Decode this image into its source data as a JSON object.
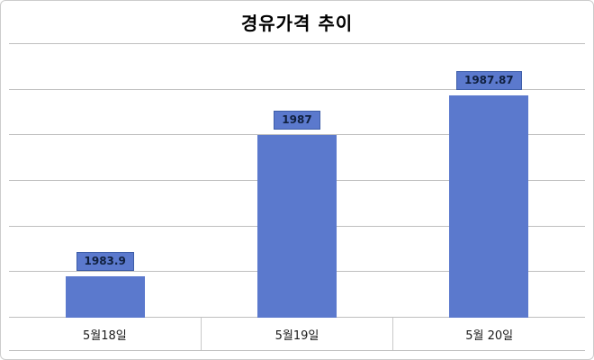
{
  "chart_data": {
    "type": "bar",
    "title": "경유가격 추이",
    "categories": [
      "5월18일",
      "5월19일",
      "5월 20일"
    ],
    "values": [
      1983.9,
      1987,
      1987.87
    ],
    "value_labels": [
      "1983.9",
      "1987",
      "1987.87"
    ],
    "xlabel": "",
    "ylabel": "",
    "ylim": [
      1983,
      1989
    ],
    "gridline_step": 1,
    "grid": true,
    "legend_position": "none",
    "colors": {
      "bar_fill": "#5b79cd",
      "value_box_fill": "#5b79cd",
      "value_box_border": "#3d5da8",
      "value_text": "#10203f",
      "gridline": "#bfbfbf",
      "frame_border": "#cccccc"
    }
  }
}
